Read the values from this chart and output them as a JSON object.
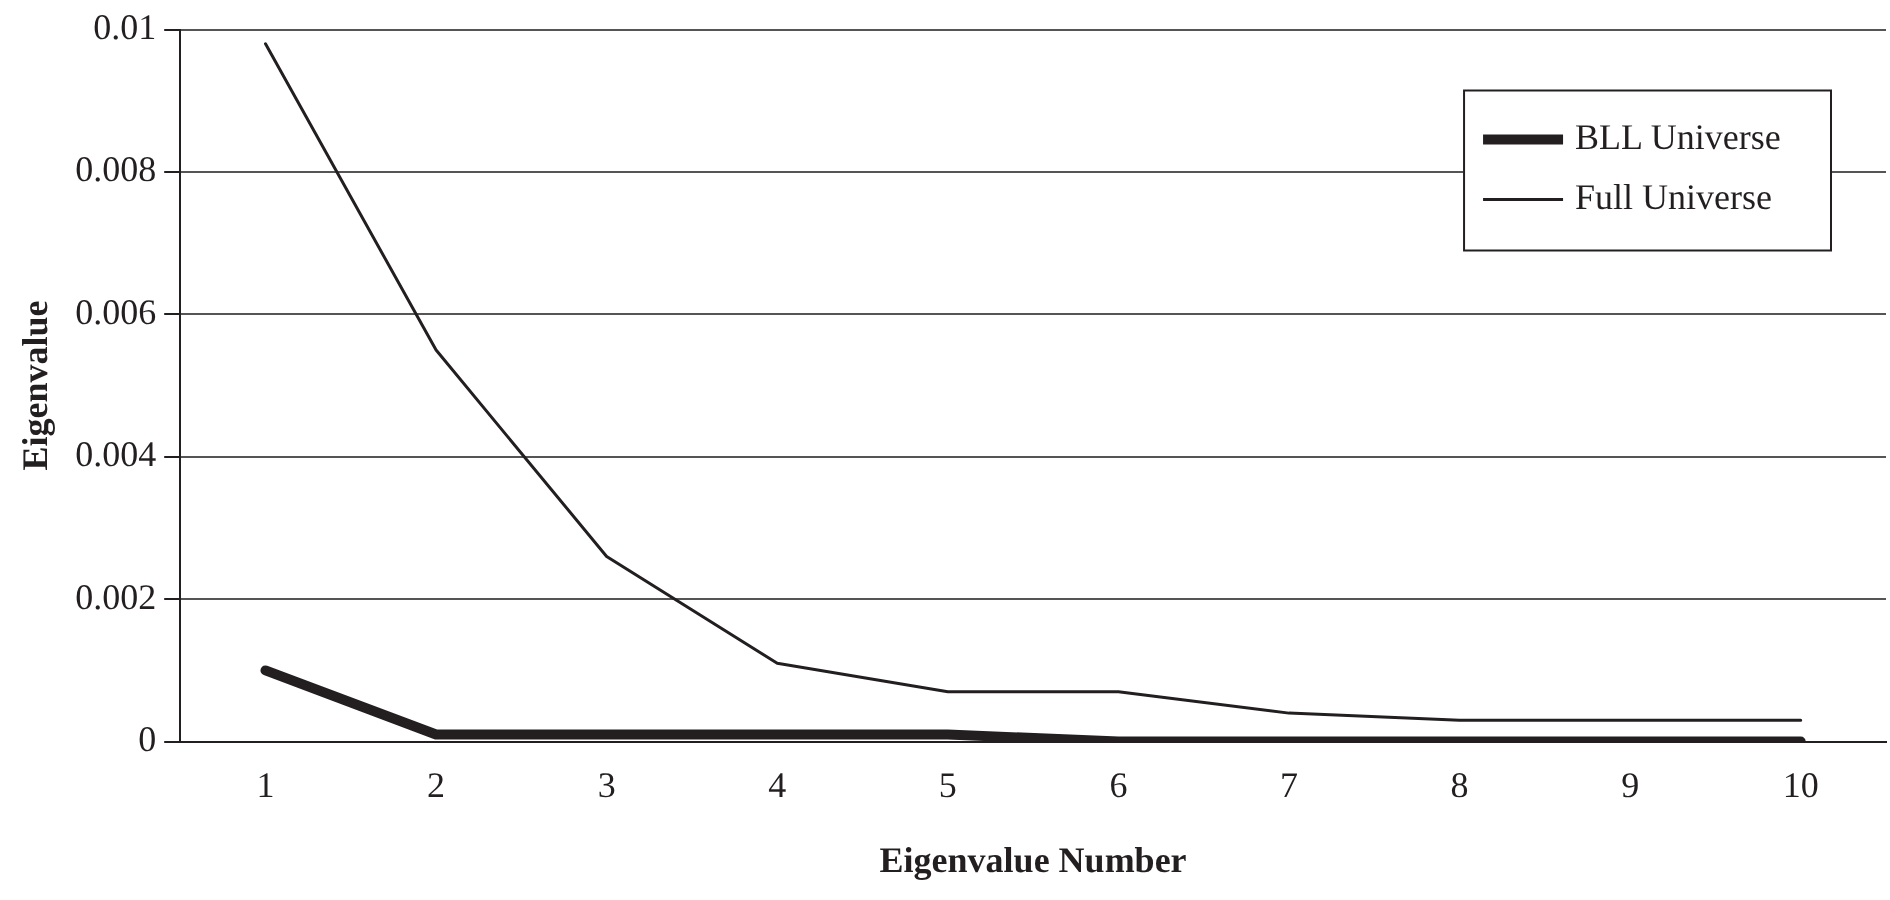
{
  "chart_data": {
    "type": "line",
    "xlabel": "Eigenvalue Number",
    "ylabel": "Eigenvalue",
    "categories": [
      "1",
      "2",
      "3",
      "4",
      "5",
      "6",
      "7",
      "8",
      "9",
      "10"
    ],
    "series": [
      {
        "name": "BLL Universe",
        "color": "#231f20",
        "values": [
          0.001,
          0.0001,
          0.0001,
          0.0001,
          0.0001,
          0,
          0,
          0,
          0,
          0
        ]
      },
      {
        "name": "Full Universe",
        "color": "#231f20",
        "values": [
          0.0098,
          0.0055,
          0.0026,
          0.0011,
          0.0007,
          0.0007,
          0.0004,
          0.0003,
          0.0003,
          0.0003
        ]
      }
    ],
    "ylim": [
      0,
      0.01
    ],
    "yticks": [
      0,
      0.002,
      0.004,
      0.006,
      0.008,
      0.01
    ],
    "grid": "y",
    "legend": "top right",
    "marker": "none",
    "line_style": "solid"
  }
}
